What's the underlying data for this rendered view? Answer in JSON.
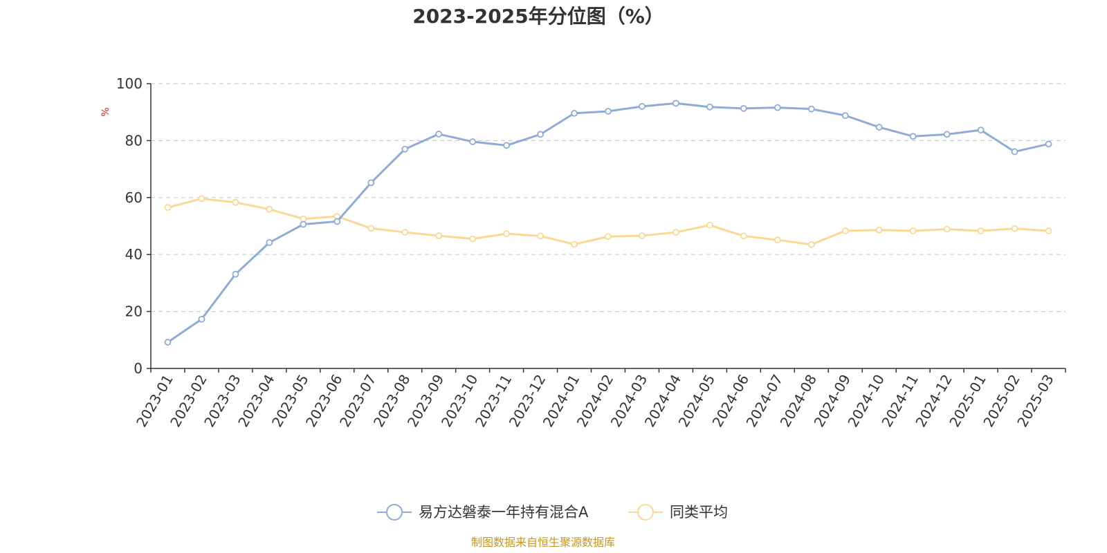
{
  "chart_data": {
    "type": "line",
    "title": "2023-2025年分位图（%）",
    "ylabel": "%",
    "xlabel": "",
    "ylim": [
      0,
      100
    ],
    "yticks": [
      0,
      20,
      40,
      60,
      80,
      100
    ],
    "grid": true,
    "legend": "bottom-center",
    "categories": [
      "2023-01",
      "2023-02",
      "2023-03",
      "2023-04",
      "2023-05",
      "2023-06",
      "2023-07",
      "2023-08",
      "2023-09",
      "2023-10",
      "2023-11",
      "2023-12",
      "2024-01",
      "2024-02",
      "2024-03",
      "2024-04",
      "2024-05",
      "2024-06",
      "2024-07",
      "2024-08",
      "2024-09",
      "2024-10",
      "2024-11",
      "2024-12",
      "2025-01",
      "2025-02",
      "2025-03"
    ],
    "series": [
      {
        "name": "易方达磐泰一年持有混合A",
        "color": "#8eabd8",
        "values": [
          9.2,
          17.3,
          33.1,
          44.2,
          50.6,
          51.6,
          65.2,
          77.0,
          82.3,
          79.6,
          78.3,
          82.2,
          89.6,
          90.3,
          92.0,
          93.1,
          91.8,
          91.3,
          91.6,
          91.1,
          88.8,
          84.7,
          81.5,
          82.2,
          83.7,
          76.1,
          78.8
        ]
      },
      {
        "name": "同类平均",
        "color": "#fad894",
        "values": [
          56.5,
          59.6,
          58.3,
          55.9,
          52.5,
          53.4,
          49.2,
          47.8,
          46.6,
          45.5,
          47.3,
          46.5,
          43.6,
          46.3,
          46.6,
          47.8,
          50.3,
          46.5,
          45.1,
          43.5,
          48.3,
          48.6,
          48.3,
          48.9,
          48.3,
          49.1,
          48.3
        ]
      }
    ],
    "source": "制图数据来自恒生聚源数据库"
  }
}
